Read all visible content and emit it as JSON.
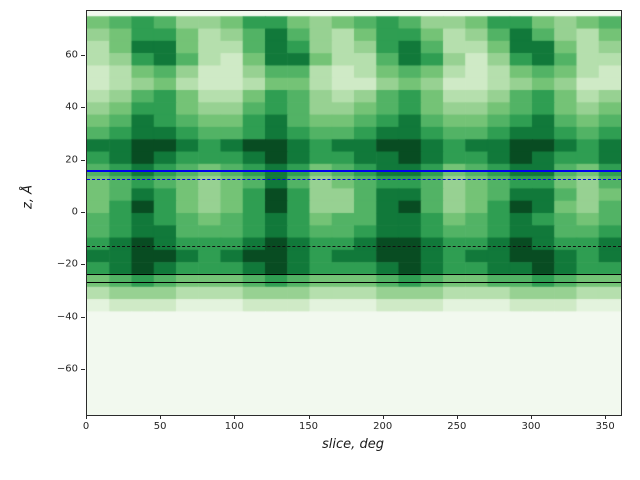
{
  "figure": {
    "background": "#ffffff",
    "plot_background": "#f7fcf5",
    "spine_color": "#2b2b2b"
  },
  "chart_data": {
    "type": "heatmap",
    "title": "",
    "xlabel": "slice, deg",
    "ylabel": "z, Å",
    "xlim": [
      0,
      360
    ],
    "ylim": [
      -77,
      77
    ],
    "grid": false,
    "legend": "none",
    "x_ticks": [
      {
        "v": 0,
        "label": "0"
      },
      {
        "v": 50,
        "label": "50"
      },
      {
        "v": 100,
        "label": "100"
      },
      {
        "v": 150,
        "label": "150"
      },
      {
        "v": 200,
        "label": "200"
      },
      {
        "v": 250,
        "label": "250"
      },
      {
        "v": 300,
        "label": "300"
      },
      {
        "v": 350,
        "label": "350"
      }
    ],
    "y_ticks": [
      {
        "v": -60,
        "label": "−60"
      },
      {
        "v": -40,
        "label": "−40"
      },
      {
        "v": -20,
        "label": "−20"
      },
      {
        "v": 0,
        "label": "0"
      },
      {
        "v": 20,
        "label": "20"
      },
      {
        "v": 40,
        "label": "40"
      },
      {
        "v": 60,
        "label": "60"
      }
    ],
    "colormap": {
      "name": "Greens",
      "levels": [
        "#f2f9ef",
        "#e3f3dd",
        "#cfeac6",
        "#b5dfad",
        "#97d192",
        "#74c376",
        "#52b365",
        "#2f9e52",
        "#11793a",
        "#084c22"
      ]
    },
    "heatmap": {
      "x_range": [
        0,
        360
      ],
      "z_range": [
        -75,
        75
      ],
      "n_cols": 24,
      "n_rows": 32,
      "rows_top_to_bottom": [
        "567644577545676445775456",
        "457753468643577534686435",
        "358853368743478633588534",
        "347863258853368742478633",
        "235642246632356532356532",
        "234532235532245422345422",
        "346753357643467533467534",
        "457754467644567544567545",
        "568765578655678655678656",
        "678876678766788766788767",
        "889987899878899878899878",
        "789877789877889877898778",
        "678765678756788756788657",
        "567654568645677645677546",
        "568754579744688645688645",
        "579754579744689645798546",
        "678765678756688756787656",
        "678866678766788766788667",
        "789877789877899877898778",
        "889987899878899878899878",
        "789877789877789877889877",
        "567655567655567655667655",
        "344433344433344433344433",
        "122211122211122211122211",
        "000000000000000000000000",
        "000000000000000000000000",
        "000000000000000000000000",
        "000000000000000000000000",
        "000000000000000000000000",
        "000000000000000000000000",
        "000000000000000000000000",
        "000000000000000000000000"
      ]
    },
    "overlay_lines": [
      {
        "z": 16,
        "color": "#0000ee",
        "style": "solid",
        "width": 2
      },
      {
        "z": 12.5,
        "color": "#0000ee",
        "style": "dashed",
        "width": 1.5
      },
      {
        "z": -13,
        "color": "#101010",
        "style": "dashed",
        "width": 1.5
      },
      {
        "z": -23.5,
        "color": "#000000",
        "style": "solid",
        "width": 1.5
      },
      {
        "z": -26.5,
        "color": "#000000",
        "style": "solid",
        "width": 1.5
      }
    ]
  }
}
